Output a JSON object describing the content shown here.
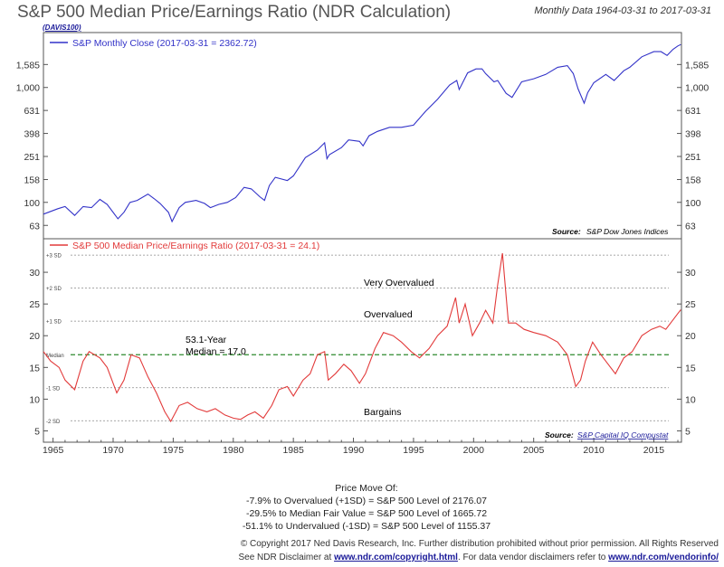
{
  "header": {
    "title": "S&P 500 Median Price/Earnings Ratio (NDR Calculation)",
    "subtitle": "Monthly Data 1964-03-31 to 2017-03-31",
    "code": "(DAVIS100)"
  },
  "colors": {
    "price": "#3232c8",
    "pe": "#e23a3a",
    "median": "#2e8b2e",
    "grid": "#8a8a8a"
  },
  "chart_data": [
    {
      "type": "line",
      "title": "S&P Monthly Close",
      "legend": "S&P Monthly Close (2017-03-31 = 2362.72)",
      "source_label": "Source:",
      "source": "S&P Dow Jones Indices",
      "yscale": "log",
      "ylim": [
        50,
        2900
      ],
      "xlim": [
        1964.2,
        2017.3
      ],
      "yticks": [
        63,
        100,
        158,
        251,
        398,
        631,
        "1,000",
        "1,585"
      ],
      "x": [
        1964.2,
        1965.4,
        1966.0,
        1966.8,
        1967.5,
        1968.2,
        1968.9,
        1969.5,
        1970.4,
        1970.9,
        1971.4,
        1972.0,
        1972.9,
        1973.4,
        1973.9,
        1974.6,
        1974.9,
        1975.5,
        1976.0,
        1976.9,
        1977.6,
        1978.1,
        1978.8,
        1979.5,
        1980.2,
        1980.9,
        1981.5,
        1982.2,
        1982.6,
        1983.0,
        1983.5,
        1984.5,
        1985.0,
        1986.0,
        1987.0,
        1987.6,
        1987.8,
        1988.0,
        1989.0,
        1989.6,
        1990.5,
        1990.8,
        1991.3,
        1992.0,
        1993.0,
        1994.0,
        1995.0,
        1996.0,
        1997.0,
        1998.0,
        1998.6,
        1998.8,
        1999.5,
        2000.2,
        2000.7,
        2001.0,
        2001.7,
        2002.0,
        2002.7,
        2003.2,
        2004.0,
        2005.0,
        2006.0,
        2007.0,
        2007.8,
        2008.3,
        2008.7,
        2009.2,
        2009.5,
        2010.0,
        2011.0,
        2011.7,
        2012.5,
        2013.0,
        2014.0,
        2015.0,
        2015.6,
        2016.1,
        2016.6,
        2017.0,
        2017.25
      ],
      "values": [
        79,
        88,
        92,
        77,
        92,
        90,
        106,
        96,
        72,
        82,
        100,
        104,
        118,
        108,
        98,
        82,
        68,
        90,
        100,
        104,
        98,
        90,
        96,
        100,
        110,
        135,
        131,
        112,
        104,
        140,
        165,
        155,
        170,
        245,
        285,
        330,
        240,
        260,
        300,
        350,
        340,
        310,
        380,
        415,
        450,
        450,
        470,
        620,
        790,
        1050,
        1150,
        960,
        1340,
        1450,
        1450,
        1320,
        1120,
        1150,
        890,
        820,
        1120,
        1190,
        1300,
        1500,
        1550,
        1320,
        970,
        730,
        900,
        1100,
        1300,
        1150,
        1400,
        1500,
        1850,
        2050,
        2050,
        1900,
        2150,
        2300,
        2362.72
      ]
    },
    {
      "type": "line",
      "title": "S&P 500 Median Price/Earnings Ratio",
      "legend": "S&P 500 Median Price/Earnings Ratio (2017-03-31 = 24.1)",
      "source_label": "Source:",
      "source": "S&P Capital IQ Compustat",
      "ylim": [
        3.5,
        35
      ],
      "xlim": [
        1964.2,
        2017.3
      ],
      "yticks": [
        5,
        10,
        15,
        20,
        25,
        30
      ],
      "xticks": [
        1965,
        1970,
        1975,
        1980,
        1985,
        1990,
        1995,
        2000,
        2005,
        2010,
        2015
      ],
      "reference_lines": [
        {
          "label": "+3 SD",
          "value": 32.7
        },
        {
          "label": "+2 SD",
          "value": 27.5
        },
        {
          "label": "+1 SD",
          "value": 22.3
        },
        {
          "label": "Median",
          "value": 17.0
        },
        {
          "label": "-1 SD",
          "value": 11.8
        },
        {
          "label": "-2 SD",
          "value": 6.6
        }
      ],
      "annotations": {
        "very_overvalued": "Very Overvalued",
        "overvalued": "Overvalued",
        "median_line1": "53.1-Year",
        "median_line2": "Median = 17.0",
        "bargains": "Bargains"
      },
      "x": [
        1964.2,
        1964.8,
        1965.5,
        1966.0,
        1966.8,
        1967.5,
        1968.0,
        1968.9,
        1969.5,
        1970.3,
        1970.9,
        1971.5,
        1972.2,
        1972.9,
        1973.6,
        1974.3,
        1974.8,
        1975.5,
        1976.2,
        1977.0,
        1977.8,
        1978.5,
        1979.3,
        1980.0,
        1980.6,
        1981.2,
        1981.8,
        1982.5,
        1983.2,
        1983.8,
        1984.5,
        1985.0,
        1985.8,
        1986.4,
        1987.0,
        1987.6,
        1987.9,
        1988.5,
        1989.2,
        1989.8,
        1990.5,
        1991.0,
        1991.8,
        1992.5,
        1993.3,
        1994.0,
        1994.8,
        1995.5,
        1996.3,
        1997.0,
        1997.8,
        1998.5,
        1998.8,
        1999.3,
        1999.9,
        2000.5,
        2001.0,
        2001.6,
        2002.0,
        2002.4,
        2002.9,
        2003.5,
        2004.2,
        2005.0,
        2006.0,
        2007.0,
        2007.8,
        2008.5,
        2008.9,
        2009.3,
        2009.9,
        2010.6,
        2011.2,
        2011.8,
        2012.5,
        2013.2,
        2014.0,
        2014.8,
        2015.5,
        2016.0,
        2016.6,
        2017.0,
        2017.25
      ],
      "values": [
        17.5,
        16,
        15,
        13,
        11.5,
        16,
        17.5,
        16.5,
        15,
        11,
        13,
        17,
        16.5,
        13.5,
        11,
        8,
        6.5,
        9,
        9.5,
        8.5,
        8,
        8.5,
        7.5,
        7,
        6.8,
        7.5,
        8,
        7,
        9,
        11.5,
        12,
        10.5,
        13,
        14,
        17,
        17.5,
        13,
        14,
        15.5,
        14.5,
        12.5,
        14,
        18,
        20.5,
        20,
        19,
        17.5,
        16.5,
        18,
        20,
        21.5,
        26,
        22,
        25,
        20,
        22,
        24,
        22,
        28,
        33,
        22,
        22,
        21,
        20.5,
        20,
        19,
        17,
        12,
        13,
        16,
        19,
        17,
        15.5,
        14,
        16.5,
        17.5,
        20,
        21,
        21.5,
        21,
        22.5,
        23.5,
        24.1
      ]
    }
  ],
  "notes": {
    "heading": "Price Move Of:",
    "line1": "-7.9% to Overvalued (+1SD) = S&P 500 Level of 2176.07",
    "line2": "-29.5% to Median Fair Value = S&P 500 Level of 1665.72",
    "line3": "-51.1% to Undervalued (-1SD) = S&P 500 Level of 1155.37"
  },
  "footer": {
    "copyright": "© Copyright 2017 Ned Davis Research, Inc. Further distribution prohibited without prior permission. All Rights Reserved",
    "disclaimer_prefix": "See NDR Disclaimer at ",
    "disclaimer_link": "www.ndr.com/copyright.html",
    "disclaimer_mid": ". For data vendor disclaimers refer to ",
    "vendor_link": "www.ndr.com/vendorinfo/"
  }
}
